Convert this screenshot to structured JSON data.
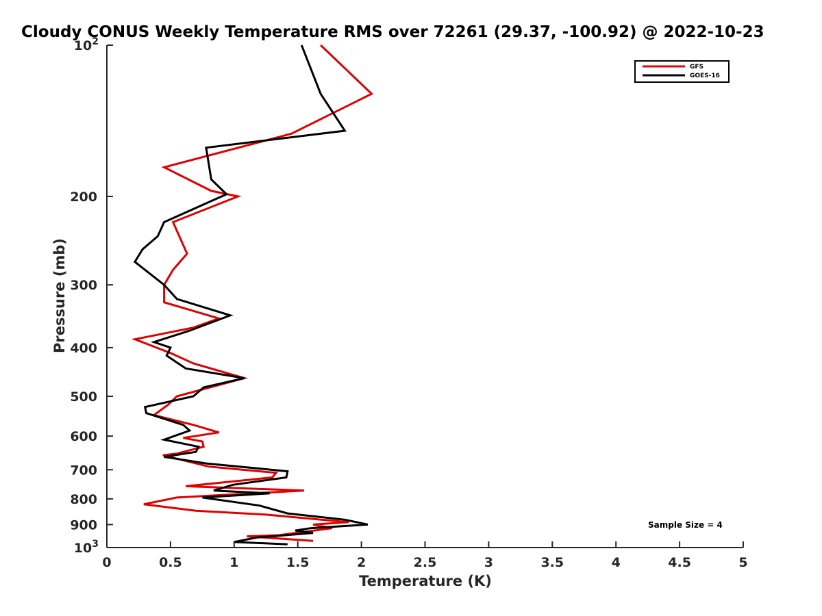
{
  "chart_data": {
    "type": "line",
    "title": "Cloudy CONUS Weekly Temperature RMS over 72261 (29.37, -100.92) @ 2022-10-23",
    "xlabel": "Temperature (K)",
    "ylabel": "Pressure (mb)",
    "xlim": [
      0,
      5
    ],
    "ylim": [
      100,
      1000
    ],
    "y_scale": "log",
    "y_reversed": true,
    "grid": false,
    "legend_position": "top-right",
    "x_ticks": [
      "0",
      "0.5",
      "1",
      "1.5",
      "2",
      "2.5",
      "3",
      "3.5",
      "4",
      "4.5",
      "5"
    ],
    "y_ticks": [
      {
        "value": 100,
        "base": "10",
        "exp": "2"
      },
      {
        "value": 200,
        "label": "200"
      },
      {
        "value": 300,
        "label": "300"
      },
      {
        "value": 400,
        "label": "400"
      },
      {
        "value": 500,
        "label": "500"
      },
      {
        "value": 600,
        "label": "600"
      },
      {
        "value": 700,
        "label": "700"
      },
      {
        "value": 800,
        "label": "800"
      },
      {
        "value": 900,
        "label": "900"
      },
      {
        "value": 1000,
        "base": "10",
        "exp": "3"
      }
    ],
    "annotation": "Sample Size = 4",
    "series": [
      {
        "name": "GFS",
        "color": "#e00000",
        "points": [
          [
            1.68,
            100
          ],
          [
            2.08,
            125
          ],
          [
            1.45,
            150
          ],
          [
            0.45,
            175
          ],
          [
            0.82,
            195
          ],
          [
            1.03,
            200
          ],
          [
            0.52,
            225
          ],
          [
            0.6,
            250
          ],
          [
            0.63,
            260
          ],
          [
            0.52,
            280
          ],
          [
            0.45,
            300
          ],
          [
            0.45,
            325
          ],
          [
            0.88,
            350
          ],
          [
            0.68,
            365
          ],
          [
            0.22,
            385
          ],
          [
            0.5,
            410
          ],
          [
            0.68,
            430
          ],
          [
            1.08,
            460
          ],
          [
            0.55,
            500
          ],
          [
            0.48,
            520
          ],
          [
            0.37,
            545
          ],
          [
            0.68,
            570
          ],
          [
            0.88,
            590
          ],
          [
            0.6,
            605
          ],
          [
            0.75,
            615
          ],
          [
            0.76,
            630
          ],
          [
            0.55,
            650
          ],
          [
            0.44,
            655
          ],
          [
            0.8,
            690
          ],
          [
            1.33,
            710
          ],
          [
            1.3,
            725
          ],
          [
            0.62,
            755
          ],
          [
            1.55,
            770
          ],
          [
            0.55,
            795
          ],
          [
            0.29,
            820
          ],
          [
            0.7,
            845
          ],
          [
            1.25,
            860
          ],
          [
            1.9,
            890
          ],
          [
            1.62,
            900
          ],
          [
            1.77,
            915
          ],
          [
            1.35,
            945
          ],
          [
            1.1,
            950
          ],
          [
            1.62,
            970
          ]
        ]
      },
      {
        "name": "GOES-16",
        "color": "#000000",
        "points": [
          [
            1.53,
            100
          ],
          [
            1.68,
            125
          ],
          [
            1.87,
            148
          ],
          [
            0.78,
            160
          ],
          [
            0.82,
            185
          ],
          [
            0.94,
            198
          ],
          [
            0.45,
            225
          ],
          [
            0.4,
            240
          ],
          [
            0.28,
            255
          ],
          [
            0.22,
            270
          ],
          [
            0.45,
            300
          ],
          [
            0.55,
            320
          ],
          [
            0.97,
            345
          ],
          [
            0.65,
            370
          ],
          [
            0.37,
            390
          ],
          [
            0.5,
            400
          ],
          [
            0.47,
            415
          ],
          [
            0.62,
            440
          ],
          [
            1.08,
            460
          ],
          [
            0.76,
            480
          ],
          [
            0.68,
            500
          ],
          [
            0.3,
            525
          ],
          [
            0.31,
            540
          ],
          [
            0.6,
            570
          ],
          [
            0.65,
            585
          ],
          [
            0.45,
            610
          ],
          [
            0.72,
            630
          ],
          [
            0.7,
            645
          ],
          [
            0.45,
            660
          ],
          [
            0.78,
            680
          ],
          [
            1.42,
            705
          ],
          [
            1.41,
            725
          ],
          [
            0.99,
            750
          ],
          [
            0.84,
            770
          ],
          [
            1.28,
            780
          ],
          [
            0.75,
            795
          ],
          [
            1.2,
            825
          ],
          [
            1.42,
            855
          ],
          [
            1.87,
            880
          ],
          [
            2.05,
            900
          ],
          [
            1.6,
            915
          ],
          [
            1.48,
            925
          ],
          [
            1.62,
            935
          ],
          [
            1.18,
            955
          ],
          [
            1.0,
            975
          ],
          [
            1.42,
            985
          ]
        ]
      }
    ]
  }
}
